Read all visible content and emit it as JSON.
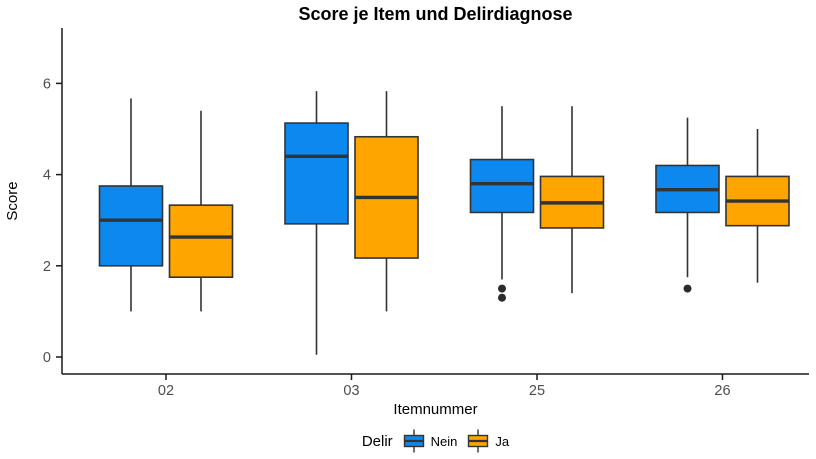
{
  "title": "Score je Item und Delirdiagnose",
  "chart_data": {
    "type": "boxplot",
    "title": "Score je Item und Delirdiagnose",
    "xlabel": "Itemnummer",
    "ylabel": "Score",
    "categories": [
      "02",
      "03",
      "25",
      "26"
    ],
    "yticks": [
      0,
      2,
      4,
      6
    ],
    "ylim": [
      -0.4,
      7.2
    ],
    "grid": false,
    "legend": {
      "title": "Delir",
      "position": "bottom",
      "entries": [
        {
          "label": "Nein",
          "color": "#0d88ee"
        },
        {
          "label": "Ja",
          "color": "#FFA500"
        }
      ]
    },
    "series": [
      {
        "name": "Nein",
        "color": "#0d88ee",
        "boxes": [
          {
            "category": "02",
            "min": 1.0,
            "q1": 2.0,
            "median": 3.0,
            "q3": 3.75,
            "max": 5.67,
            "outliers": []
          },
          {
            "category": "03",
            "min": 0.05,
            "q1": 2.92,
            "median": 4.4,
            "q3": 5.13,
            "max": 5.83,
            "outliers": []
          },
          {
            "category": "25",
            "min": 1.7,
            "q1": 3.17,
            "median": 3.8,
            "q3": 4.33,
            "max": 5.5,
            "outliers": [
              1.5,
              1.3
            ]
          },
          {
            "category": "26",
            "min": 1.75,
            "q1": 3.17,
            "median": 3.67,
            "q3": 4.2,
            "max": 5.25,
            "outliers": [
              1.5
            ]
          }
        ]
      },
      {
        "name": "Ja",
        "color": "#FFA500",
        "boxes": [
          {
            "category": "02",
            "min": 1.0,
            "q1": 1.75,
            "median": 2.63,
            "q3": 3.33,
            "max": 5.4,
            "outliers": []
          },
          {
            "category": "03",
            "min": 1.0,
            "q1": 2.17,
            "median": 3.5,
            "q3": 4.83,
            "max": 5.83,
            "outliers": []
          },
          {
            "category": "25",
            "min": 1.4,
            "q1": 2.83,
            "median": 3.38,
            "q3": 3.96,
            "max": 5.5,
            "outliers": []
          },
          {
            "category": "26",
            "min": 1.63,
            "q1": 2.88,
            "median": 3.42,
            "q3": 3.96,
            "max": 5.0,
            "outliers": []
          }
        ]
      }
    ],
    "colors": {
      "box_border": "#333333",
      "median": "#333333",
      "whisker": "#333333",
      "outlier": "#2b2b2b",
      "axis_line": "#1a1a1a",
      "tick_label": "#4d4d4d",
      "background": "#ffffff"
    }
  }
}
